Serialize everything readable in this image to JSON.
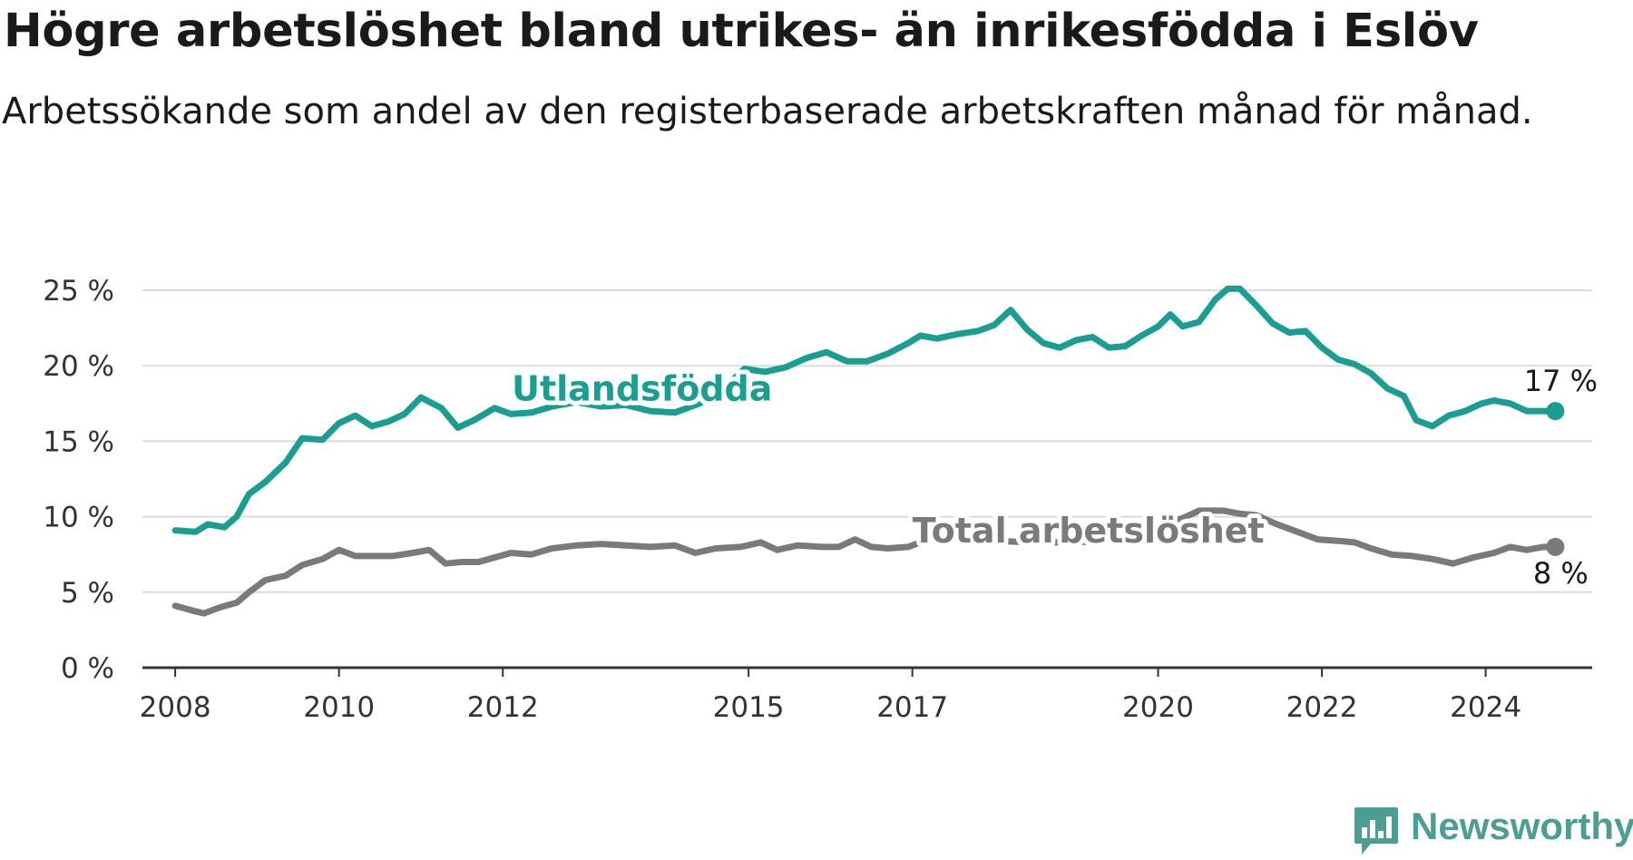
{
  "header": {
    "title": "Högre arbetslöshet bland utrikes- än inrikesfödda i Eslöv",
    "subtitle": "Arbetssökande som andel av den registerbaserade arbetskraften månad för månad."
  },
  "branding": {
    "name": "Newsworthy",
    "icon": "newsworthy-logo-icon",
    "color": "#4d9e92"
  },
  "chart_data": {
    "type": "line",
    "ylim": [
      0,
      25
    ],
    "xlim": [
      2007.6,
      2025.3
    ],
    "y_ticks": [
      {
        "value": 0,
        "label": "0 %"
      },
      {
        "value": 5,
        "label": "5 %"
      },
      {
        "value": 10,
        "label": "10 %"
      },
      {
        "value": 15,
        "label": "15 %"
      },
      {
        "value": 20,
        "label": "20 %"
      },
      {
        "value": 25,
        "label": "25 %"
      }
    ],
    "x_ticks": [
      {
        "value": 2008,
        "label": "2008"
      },
      {
        "value": 2010,
        "label": "2010"
      },
      {
        "value": 2012,
        "label": "2012"
      },
      {
        "value": 2015,
        "label": "2015"
      },
      {
        "value": 2017,
        "label": "2017"
      },
      {
        "value": 2020,
        "label": "2020"
      },
      {
        "value": 2022,
        "label": "2022"
      },
      {
        "value": 2024,
        "label": "2024"
      }
    ],
    "grid": true,
    "series": [
      {
        "name": "Utlandsfödda",
        "color": "#1a9e92",
        "end_label": "17 %",
        "points": [
          [
            2008.0,
            9.1
          ],
          [
            2008.25,
            9.0
          ],
          [
            2008.4,
            9.5
          ],
          [
            2008.6,
            9.3
          ],
          [
            2008.75,
            10.0
          ],
          [
            2008.9,
            11.5
          ],
          [
            2009.1,
            12.3
          ],
          [
            2009.35,
            13.6
          ],
          [
            2009.55,
            15.2
          ],
          [
            2009.8,
            15.1
          ],
          [
            2010.0,
            16.2
          ],
          [
            2010.2,
            16.7
          ],
          [
            2010.4,
            16.0
          ],
          [
            2010.6,
            16.3
          ],
          [
            2010.8,
            16.8
          ],
          [
            2011.0,
            17.9
          ],
          [
            2011.25,
            17.2
          ],
          [
            2011.45,
            15.9
          ],
          [
            2011.65,
            16.4
          ],
          [
            2011.9,
            17.2
          ],
          [
            2012.1,
            16.8
          ],
          [
            2012.35,
            16.9
          ],
          [
            2012.6,
            17.3
          ],
          [
            2012.9,
            17.6
          ],
          [
            2013.2,
            17.3
          ],
          [
            2013.5,
            17.4
          ],
          [
            2013.8,
            17.0
          ],
          [
            2014.1,
            16.9
          ],
          [
            2014.4,
            17.5
          ],
          [
            2014.7,
            18.5
          ],
          [
            2014.95,
            19.8
          ],
          [
            2015.2,
            19.6
          ],
          [
            2015.45,
            19.9
          ],
          [
            2015.7,
            20.5
          ],
          [
            2015.95,
            20.9
          ],
          [
            2016.2,
            20.3
          ],
          [
            2016.45,
            20.3
          ],
          [
            2016.7,
            20.8
          ],
          [
            2016.95,
            21.5
          ],
          [
            2017.1,
            22.0
          ],
          [
            2017.3,
            21.8
          ],
          [
            2017.55,
            22.1
          ],
          [
            2017.8,
            22.3
          ],
          [
            2018.0,
            22.7
          ],
          [
            2018.2,
            23.7
          ],
          [
            2018.4,
            22.4
          ],
          [
            2018.6,
            21.5
          ],
          [
            2018.8,
            21.2
          ],
          [
            2019.0,
            21.7
          ],
          [
            2019.2,
            21.9
          ],
          [
            2019.4,
            21.2
          ],
          [
            2019.6,
            21.3
          ],
          [
            2019.8,
            22.0
          ],
          [
            2020.0,
            22.6
          ],
          [
            2020.15,
            23.4
          ],
          [
            2020.3,
            22.6
          ],
          [
            2020.5,
            22.9
          ],
          [
            2020.7,
            24.4
          ],
          [
            2020.85,
            25.1
          ],
          [
            2021.0,
            25.1
          ],
          [
            2021.2,
            24.0
          ],
          [
            2021.4,
            22.8
          ],
          [
            2021.6,
            22.2
          ],
          [
            2021.8,
            22.3
          ],
          [
            2022.0,
            21.2
          ],
          [
            2022.2,
            20.4
          ],
          [
            2022.4,
            20.1
          ],
          [
            2022.6,
            19.5
          ],
          [
            2022.8,
            18.5
          ],
          [
            2023.0,
            18.0
          ],
          [
            2023.15,
            16.4
          ],
          [
            2023.35,
            16.0
          ],
          [
            2023.55,
            16.7
          ],
          [
            2023.75,
            17.0
          ],
          [
            2023.95,
            17.5
          ],
          [
            2024.1,
            17.7
          ],
          [
            2024.3,
            17.5
          ],
          [
            2024.5,
            17.0
          ],
          [
            2024.7,
            17.0
          ],
          [
            2024.85,
            17.0
          ]
        ]
      },
      {
        "name": "Total arbetslöshet",
        "color": "#7a7a7e",
        "end_label": "8 %",
        "points": [
          [
            2008.0,
            4.1
          ],
          [
            2008.2,
            3.8
          ],
          [
            2008.35,
            3.6
          ],
          [
            2008.55,
            4.0
          ],
          [
            2008.75,
            4.3
          ],
          [
            2008.9,
            5.0
          ],
          [
            2009.1,
            5.8
          ],
          [
            2009.35,
            6.1
          ],
          [
            2009.55,
            6.8
          ],
          [
            2009.8,
            7.2
          ],
          [
            2010.0,
            7.8
          ],
          [
            2010.2,
            7.4
          ],
          [
            2010.4,
            7.4
          ],
          [
            2010.65,
            7.4
          ],
          [
            2010.9,
            7.6
          ],
          [
            2011.1,
            7.8
          ],
          [
            2011.3,
            6.9
          ],
          [
            2011.5,
            7.0
          ],
          [
            2011.7,
            7.0
          ],
          [
            2011.9,
            7.3
          ],
          [
            2012.1,
            7.6
          ],
          [
            2012.35,
            7.5
          ],
          [
            2012.6,
            7.9
          ],
          [
            2012.9,
            8.1
          ],
          [
            2013.2,
            8.2
          ],
          [
            2013.5,
            8.1
          ],
          [
            2013.8,
            8.0
          ],
          [
            2014.1,
            8.1
          ],
          [
            2014.35,
            7.6
          ],
          [
            2014.6,
            7.9
          ],
          [
            2014.9,
            8.0
          ],
          [
            2015.15,
            8.3
          ],
          [
            2015.35,
            7.8
          ],
          [
            2015.6,
            8.1
          ],
          [
            2015.9,
            8.0
          ],
          [
            2016.1,
            8.0
          ],
          [
            2016.3,
            8.5
          ],
          [
            2016.5,
            8.0
          ],
          [
            2016.7,
            7.9
          ],
          [
            2016.95,
            8.0
          ],
          [
            2017.2,
            8.5
          ],
          [
            2017.5,
            8.5
          ],
          [
            2018.0,
            8.4
          ],
          [
            2018.5,
            8.3
          ],
          [
            2019.0,
            8.3
          ],
          [
            2019.5,
            8.5
          ],
          [
            2019.9,
            9.0
          ],
          [
            2020.1,
            9.6
          ],
          [
            2020.3,
            9.9
          ],
          [
            2020.5,
            10.4
          ],
          [
            2020.8,
            10.4
          ],
          [
            2021.0,
            10.2
          ],
          [
            2021.2,
            10.1
          ],
          [
            2021.45,
            9.5
          ],
          [
            2021.7,
            9.0
          ],
          [
            2021.95,
            8.5
          ],
          [
            2022.2,
            8.4
          ],
          [
            2022.4,
            8.3
          ],
          [
            2022.6,
            7.9
          ],
          [
            2022.85,
            7.5
          ],
          [
            2023.1,
            7.4
          ],
          [
            2023.35,
            7.2
          ],
          [
            2023.6,
            6.9
          ],
          [
            2023.85,
            7.3
          ],
          [
            2024.1,
            7.6
          ],
          [
            2024.3,
            8.0
          ],
          [
            2024.5,
            7.8
          ],
          [
            2024.7,
            8.0
          ],
          [
            2024.85,
            8.0
          ]
        ]
      }
    ],
    "annotations": [
      {
        "text": "Utlandsfödda",
        "series": "Utlandsfödda",
        "x": 2013.7,
        "y": 17.7
      },
      {
        "text": "Total arbetslöshet",
        "series": "Total arbetslöshet",
        "x": 2019.15,
        "y": 8.3
      }
    ]
  }
}
